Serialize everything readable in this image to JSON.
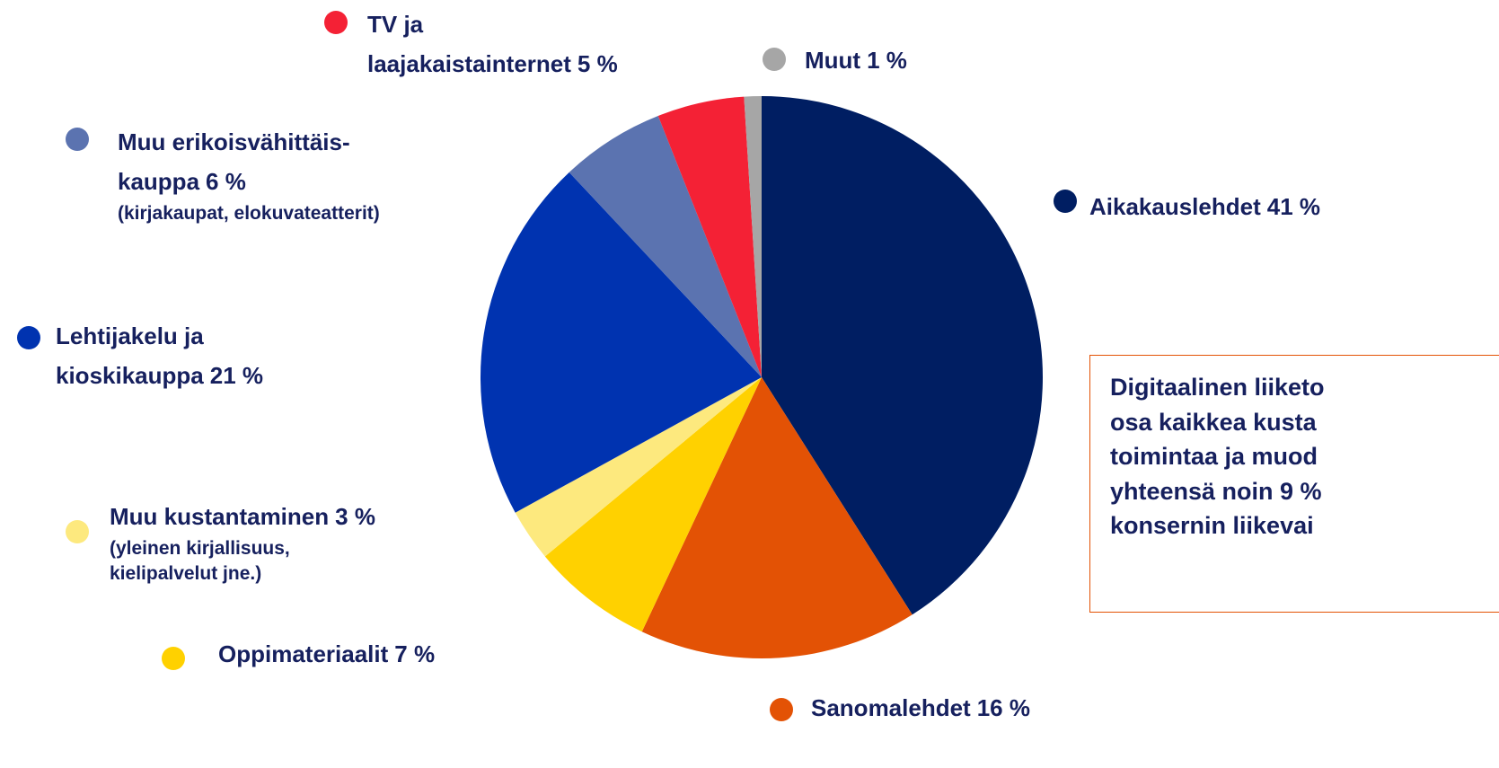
{
  "chart_data": {
    "type": "pie",
    "categories": [
      "Aikakauslehdet",
      "Sanomalehdet",
      "Oppimateriaalit",
      "Muu kustantaminen",
      "Lehtijakelu ja\nkioskikauppa",
      "Muu erikoisvähittäis-\nkauppa",
      "TV ja\nlaajakaistainternet",
      "Muut"
    ],
    "values": [
      41,
      16,
      7,
      3,
      21,
      6,
      5,
      1
    ],
    "value_labels": [
      "41 %",
      "16 %",
      "7 %",
      "3 %",
      "21 %",
      "6 %",
      "5 %",
      "1 %"
    ],
    "notes": [
      null,
      null,
      null,
      "(yleinen kirjallisuus,\nkielipalvelut jne.)",
      null,
      "(kirjakaupat, elokuvateatterit)",
      null,
      null
    ],
    "colors": [
      "#001e62",
      "#e35205",
      "#ffd100",
      "#fde97e",
      "#0033b0",
      "#5b73b0",
      "#f42135",
      "#a6a6a6"
    ],
    "callout": [
      "Digitaalinen liiketo",
      "osa kaikkea kusta",
      "toimintaa ja muod",
      "yhteensä noin 9 %",
      "konsernin liikevai"
    ]
  }
}
